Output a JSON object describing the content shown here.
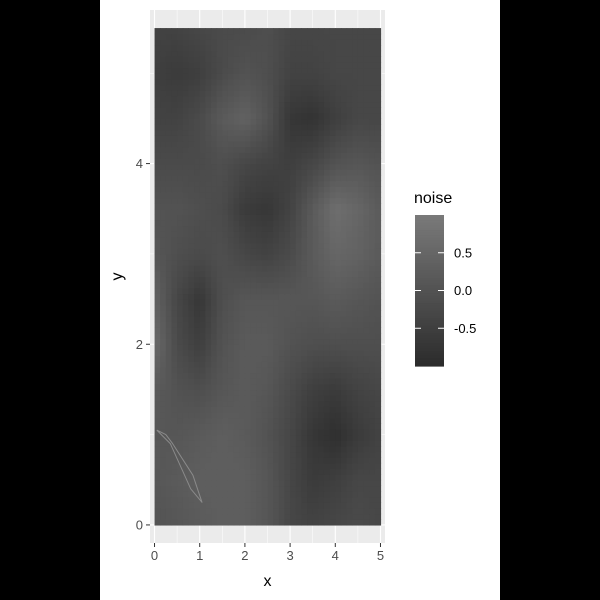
{
  "chart_data": {
    "type": "heatmap",
    "title": "",
    "xlabel": "x",
    "ylabel": "y",
    "xlim": [
      -0.1,
      5.1
    ],
    "ylim": [
      -0.2,
      5.7
    ],
    "tile_extent": {
      "x": [
        0,
        5
      ],
      "y": [
        0,
        5.5
      ]
    },
    "x_ticks": [
      0,
      1,
      2,
      3,
      4,
      5
    ],
    "y_ticks": [
      0,
      2,
      4
    ],
    "x_tick_labels": [
      "0",
      "1",
      "2",
      "3",
      "4",
      "5"
    ],
    "y_tick_labels": [
      "0",
      "2",
      "4"
    ],
    "x_grid": [
      0,
      0.5,
      1,
      1.5,
      2,
      2.5,
      3,
      3.5,
      4,
      4.5,
      5
    ],
    "y_grid": [
      0,
      1,
      2,
      3,
      4,
      5
    ],
    "grid": true,
    "panel_background": "#ebebeb",
    "grid_color": "#ffffff",
    "legend": {
      "title": "noise",
      "position": "right",
      "ticks": [
        0.5,
        0.0,
        -0.5
      ],
      "labels": [
        "0.5",
        "0.0",
        "-0.5"
      ],
      "range": [
        -1,
        1
      ],
      "low_color": "#2b2b2b",
      "high_color": "#7a7a7a"
    },
    "noise_grid": {
      "x": [
        0,
        0.5,
        1,
        1.5,
        2,
        2.5,
        3,
        3.5,
        4,
        4.5,
        5
      ],
      "y": [
        0,
        0.5,
        1,
        1.5,
        2,
        2.5,
        3,
        3.5,
        4,
        4.5,
        5,
        5.5
      ],
      "values": [
        [
          0.0,
          0.1,
          0.2,
          0.3,
          0.3,
          0.1,
          -0.3,
          -0.4,
          -0.3,
          -0.2,
          -0.3
        ],
        [
          0.1,
          0.2,
          0.3,
          0.3,
          0.3,
          0.1,
          -0.3,
          -0.6,
          -0.5,
          -0.3,
          -0.3
        ],
        [
          0.1,
          0.1,
          0.2,
          0.3,
          0.2,
          0.0,
          -0.3,
          -0.7,
          -0.9,
          -0.6,
          -0.4
        ],
        [
          0.2,
          0.0,
          -0.1,
          0.1,
          0.2,
          0.1,
          -0.2,
          -0.5,
          -0.6,
          -0.4,
          -0.3
        ],
        [
          0.6,
          -0.2,
          -0.5,
          0.0,
          0.2,
          0.2,
          0.0,
          -0.1,
          -0.1,
          -0.1,
          -0.1
        ],
        [
          0.4,
          -0.3,
          -0.7,
          -0.1,
          0.1,
          0.1,
          0.1,
          0.1,
          0.2,
          0.1,
          0.0
        ],
        [
          0.1,
          -0.1,
          -0.2,
          -0.1,
          -0.3,
          -0.4,
          -0.2,
          0.2,
          0.5,
          0.4,
          0.2
        ],
        [
          0.0,
          0.0,
          -0.1,
          -0.2,
          -0.6,
          -0.7,
          -0.4,
          0.2,
          0.7,
          0.5,
          0.2
        ],
        [
          -0.2,
          -0.2,
          -0.2,
          -0.1,
          -0.3,
          -0.4,
          -0.5,
          -0.3,
          0.0,
          0.1,
          0.0
        ],
        [
          -0.4,
          -0.4,
          -0.2,
          0.2,
          0.4,
          0.0,
          -0.7,
          -0.8,
          -0.5,
          -0.3,
          -0.3
        ],
        [
          -0.5,
          -0.6,
          -0.5,
          -0.2,
          0.0,
          -0.1,
          -0.4,
          -0.4,
          -0.3,
          -0.3,
          -0.3
        ],
        [
          -0.4,
          -0.4,
          -0.3,
          -0.2,
          -0.2,
          -0.1,
          -0.3,
          -0.3,
          -0.3,
          -0.3,
          -0.3
        ]
      ]
    },
    "annotation_path": {
      "type": "loop",
      "stroke": "#8a8a8a",
      "points": [
        [
          0.05,
          1.05
        ],
        [
          0.35,
          0.9
        ],
        [
          0.8,
          0.4
        ],
        [
          1.05,
          0.25
        ],
        [
          0.85,
          0.55
        ],
        [
          0.4,
          0.9
        ],
        [
          0.25,
          1.0
        ],
        [
          0.05,
          1.05
        ]
      ]
    }
  }
}
